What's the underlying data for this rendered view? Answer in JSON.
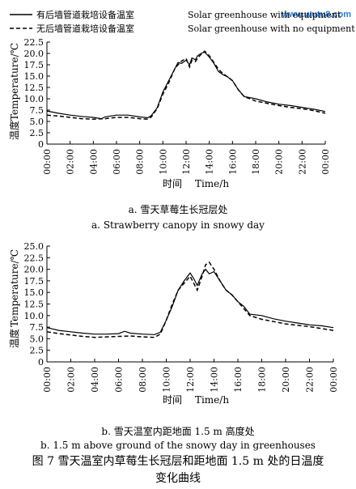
{
  "watermark": "www.wutu8.com",
  "legend": {
    "with_equipment_cn": "有后墙管道栽培设备温室",
    "with_equipment_en": "Solar greenhouse with equipment",
    "no_equipment_cn": "无后墙管道栽培设备温室",
    "no_equipment_en": "Solar greenhouse with no equipment"
  },
  "captions": {
    "a_cn": "a.  雪天草莓生长冠层处",
    "a_en": "a. Strawberry canopy in snowy day",
    "b_cn": "b.  雪天温室内距地面 1.5 m 高度处",
    "b_en": "b. 1.5 m above ground of the snowy day in greenhouses"
  },
  "figure_title_line1": "图 7   雪天温室内草莓生长冠层和距地面 1.5 m 处的日温度",
  "figure_title_line2": "变化曲线",
  "chart_data": [
    {
      "type": "line",
      "panel": "a",
      "ylabel_cn": "温度",
      "ylabel_en": "Temperature/℃",
      "xlabel_cn": "时间",
      "xlabel_en": "Time/h",
      "ylim": [
        0,
        22.5
      ],
      "yticks": [
        "0",
        "2.5",
        "5.0",
        "7.5",
        "10.0",
        "12.5",
        "15.0",
        "17.5",
        "20.0",
        "22.5"
      ],
      "xlim": [
        0,
        24
      ],
      "xticks": [
        "00:00",
        "02:00",
        "04:00",
        "06:00",
        "08:00",
        "10:00",
        "12:00",
        "14:00",
        "16:00",
        "18:00",
        "20:00",
        "22:00",
        "00:00"
      ],
      "legend_position": "top",
      "series": [
        {
          "name": "有后墙管道栽培设备温室 Solar greenhouse with equipment",
          "style": "solid",
          "x": [
            0,
            1,
            2,
            3,
            4,
            4.7,
            5,
            6,
            7,
            8,
            8.7,
            9,
            9.5,
            10,
            10.5,
            11,
            11.3,
            11.6,
            12,
            12.3,
            12.5,
            12.8,
            13,
            13.3,
            13.6,
            14,
            14.4,
            14.8,
            15.2,
            15.6,
            16,
            16.5,
            17,
            18,
            19,
            20,
            21,
            22,
            23,
            24
          ],
          "y": [
            7.3,
            6.8,
            6.4,
            6.1,
            5.9,
            5.6,
            6.0,
            6.4,
            6.4,
            6.0,
            5.8,
            6.3,
            8.0,
            11.5,
            14.0,
            16.5,
            18.0,
            17.8,
            18.5,
            17.5,
            19.0,
            18.6,
            19.5,
            20.0,
            20.3,
            19.2,
            17.8,
            16.0,
            15.3,
            14.8,
            14.0,
            12.0,
            10.5,
            10.0,
            9.3,
            8.8,
            8.5,
            8.1,
            7.7,
            7.2
          ]
        },
        {
          "name": "无后墙管道栽培设备温室 Solar greenhouse with no equipment",
          "style": "dashed",
          "x": [
            0,
            1,
            2,
            3,
            4,
            5,
            6,
            7,
            8,
            8.7,
            9,
            9.5,
            10,
            10.5,
            11,
            11.3,
            11.6,
            12,
            12.3,
            12.5,
            12.8,
            13,
            13.3,
            13.6,
            14,
            14.4,
            14.8,
            15.2,
            15.6,
            16,
            16.5,
            17,
            18,
            19,
            20,
            21,
            22,
            23,
            24
          ],
          "y": [
            6.4,
            6.2,
            5.9,
            5.6,
            5.5,
            5.6,
            5.9,
            5.9,
            5.6,
            5.5,
            6.0,
            7.8,
            11.0,
            13.5,
            16.5,
            17.5,
            18.3,
            18.9,
            17.0,
            18.5,
            18.2,
            19.0,
            19.8,
            20.5,
            19.5,
            18.0,
            16.5,
            15.5,
            14.8,
            14.0,
            12.0,
            10.5,
            9.5,
            9.0,
            8.5,
            8.1,
            7.8,
            7.4,
            6.8
          ]
        }
      ]
    },
    {
      "type": "line",
      "panel": "b",
      "ylabel_cn": "温度",
      "ylabel_en": "Temperature/℃",
      "xlabel_cn": "时间",
      "xlabel_en": "Time/h",
      "ylim": [
        0,
        25
      ],
      "yticks": [
        "0",
        "2.5",
        "5.0",
        "7.5",
        "10.0",
        "12.5",
        "15.0",
        "17.5",
        "20.0",
        "22.5",
        "25.0"
      ],
      "xlim": [
        0,
        24
      ],
      "xticks": [
        "00:00",
        "02:00",
        "04:00",
        "06:00",
        "08:00",
        "10:00",
        "12:00",
        "14:00",
        "16:00",
        "18:00",
        "20:00",
        "22:00",
        "00:00"
      ],
      "series": [
        {
          "name": "有后墙管道栽培设备温室 Solar greenhouse with equipment",
          "style": "solid",
          "x": [
            0,
            1,
            2,
            3,
            4,
            5,
            6,
            6.5,
            7,
            8,
            9,
            9.5,
            10,
            10.5,
            11,
            11.5,
            12,
            12.3,
            12.6,
            13,
            13.3,
            13.6,
            14,
            14.5,
            15,
            15.5,
            16,
            16.5,
            17,
            18,
            19,
            20,
            21,
            22,
            23,
            24
          ],
          "y": [
            7.4,
            6.8,
            6.5,
            6.2,
            6.0,
            6.0,
            6.1,
            6.6,
            6.2,
            6.0,
            5.9,
            6.4,
            9.0,
            12.0,
            15.5,
            17.5,
            19.2,
            18.0,
            16.5,
            19.0,
            20.0,
            19.0,
            19.5,
            17.5,
            15.5,
            14.5,
            13.0,
            12.0,
            10.3,
            10.0,
            9.3,
            8.8,
            8.4,
            8.0,
            7.8,
            7.4
          ]
        },
        {
          "name": "无后墙管道栽培设备温室 Solar greenhouse with no equipment",
          "style": "dashed",
          "x": [
            0,
            1,
            2,
            3,
            4,
            5,
            6,
            7,
            8,
            9,
            9.5,
            10,
            10.5,
            11,
            11.5,
            12,
            12.3,
            12.6,
            13,
            13.3,
            13.6,
            14,
            14.5,
            15,
            15.5,
            16,
            16.5,
            17,
            18,
            19,
            20,
            21,
            22,
            23,
            24
          ],
          "y": [
            6.5,
            6.1,
            5.8,
            5.5,
            5.3,
            5.4,
            5.5,
            5.6,
            5.4,
            5.3,
            6.0,
            9.0,
            12.5,
            15.5,
            17.0,
            18.5,
            17.0,
            15.5,
            18.5,
            21.0,
            21.5,
            20.0,
            17.5,
            15.5,
            14.5,
            13.0,
            11.5,
            10.0,
            9.2,
            8.7,
            8.2,
            7.9,
            7.6,
            7.2,
            6.8
          ]
        }
      ]
    }
  ]
}
